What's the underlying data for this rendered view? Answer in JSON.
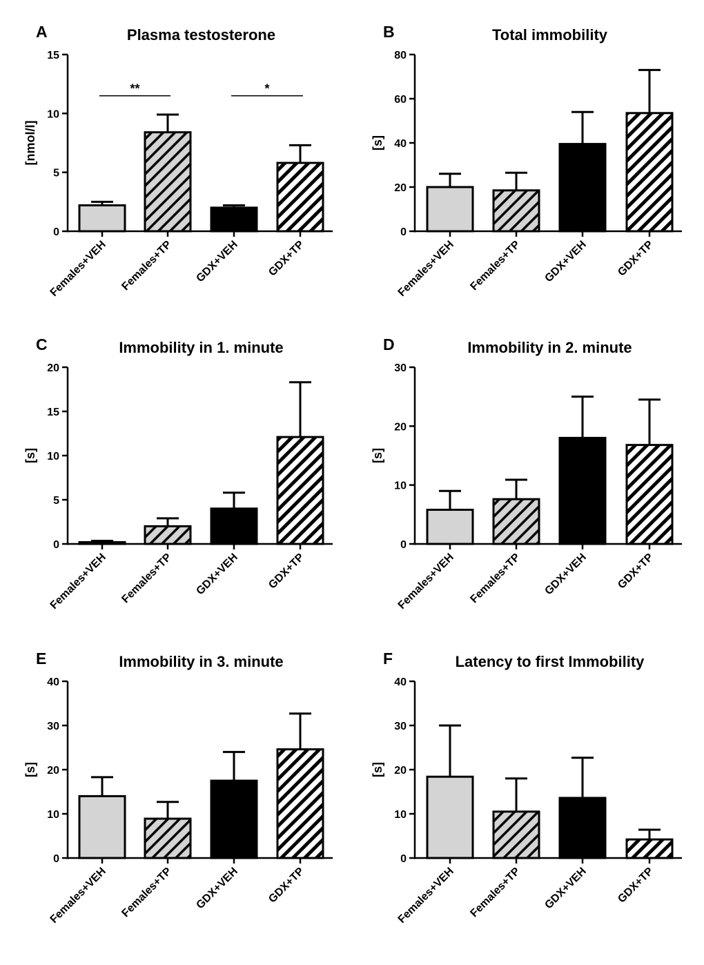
{
  "figure": {
    "background": "#ffffff",
    "colors": {
      "females_veh": "#d4d4d4",
      "females_tp_bg": "#d4d4d4",
      "gdx_veh": "#000000",
      "gdx_tp_bg": "#ffffff",
      "ink": "#000000"
    }
  },
  "chart_data": [
    {
      "panel": "A",
      "type": "bar",
      "title": "Plasma testosterone",
      "ylabel": "[nmol/l]",
      "ylim": [
        0,
        15
      ],
      "yticks": [
        0,
        5,
        10,
        15
      ],
      "categories": [
        "Females+VEH",
        "Females+TP",
        "GDX+VEH",
        "GDX+TP"
      ],
      "values": [
        2.2,
        8.4,
        2.0,
        5.8
      ],
      "errors": [
        0.3,
        1.5,
        0.2,
        1.5
      ],
      "significance": [
        {
          "from": 0,
          "to": 1,
          "label": "**",
          "y": 11.5
        },
        {
          "from": 2,
          "to": 3,
          "label": "*",
          "y": 11.5
        }
      ]
    },
    {
      "panel": "B",
      "type": "bar",
      "title": "Total immobility",
      "ylabel": "[s]",
      "ylim": [
        0,
        80
      ],
      "yticks": [
        0,
        20,
        40,
        60,
        80
      ],
      "categories": [
        "Females+VEH",
        "Females+TP",
        "GDX+VEH",
        "GDX+TP"
      ],
      "values": [
        20,
        18.5,
        39.5,
        53.5
      ],
      "errors": [
        6,
        8,
        14.5,
        19.5
      ],
      "significance": []
    },
    {
      "panel": "C",
      "type": "bar",
      "title": "Immobility in 1. minute",
      "ylabel": "[s]",
      "ylim": [
        0,
        20
      ],
      "yticks": [
        0,
        5,
        10,
        15,
        20
      ],
      "categories": [
        "Females+VEH",
        "Females+TP",
        "GDX+VEH",
        "GDX+TP"
      ],
      "values": [
        0.2,
        2.0,
        4.0,
        12.1
      ],
      "errors": [
        0.15,
        0.9,
        1.8,
        6.2
      ],
      "significance": []
    },
    {
      "panel": "D",
      "type": "bar",
      "title": "Immobility in 2. minute",
      "ylabel": "[s]",
      "ylim": [
        0,
        30
      ],
      "yticks": [
        0,
        10,
        20,
        30
      ],
      "categories": [
        "Females+VEH",
        "Females+TP",
        "GDX+VEH",
        "GDX+TP"
      ],
      "values": [
        5.8,
        7.6,
        18.0,
        16.8
      ],
      "errors": [
        3.2,
        3.3,
        7.0,
        7.7
      ],
      "significance": []
    },
    {
      "panel": "E",
      "type": "bar",
      "title": "Immobility in 3. minute",
      "ylabel": "[s]",
      "ylim": [
        0,
        40
      ],
      "yticks": [
        0,
        10,
        20,
        30,
        40
      ],
      "categories": [
        "Females+VEH",
        "Females+TP",
        "GDX+VEH",
        "GDX+TP"
      ],
      "values": [
        14.0,
        8.9,
        17.5,
        24.6
      ],
      "errors": [
        4.3,
        3.8,
        6.5,
        8.1
      ],
      "significance": []
    },
    {
      "panel": "F",
      "type": "bar",
      "title": "Latency to first Immobility",
      "ylabel": "[s]",
      "ylim": [
        0,
        40
      ],
      "yticks": [
        0,
        10,
        20,
        30,
        40
      ],
      "categories": [
        "Females+VEH",
        "Females+TP",
        "GDX+VEH",
        "GDX+TP"
      ],
      "values": [
        18.4,
        10.5,
        13.6,
        4.2
      ],
      "errors": [
        11.6,
        7.5,
        9.1,
        2.2
      ],
      "significance": []
    }
  ]
}
